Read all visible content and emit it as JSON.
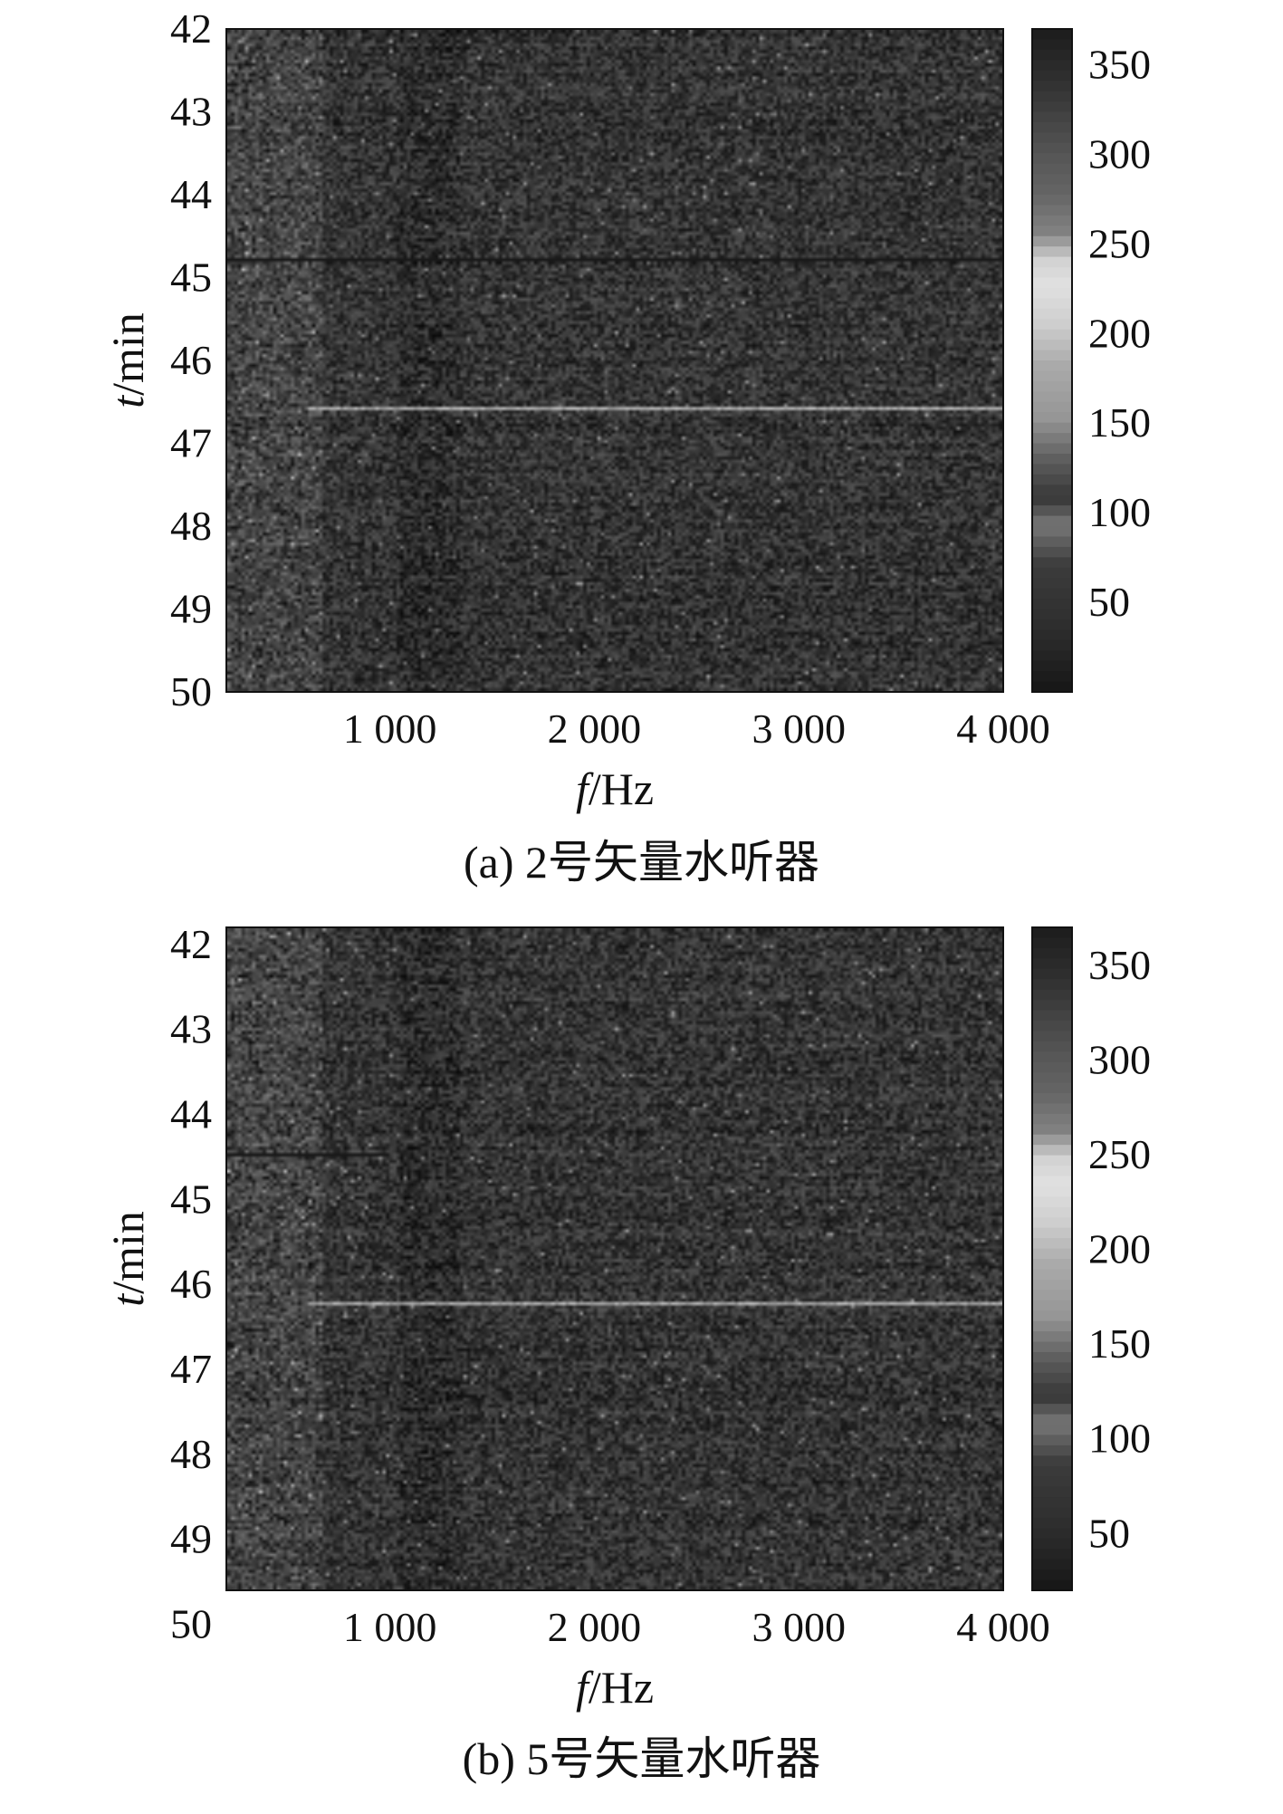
{
  "chart_data": [
    {
      "type": "heatmap",
      "caption": "(a) 2号矢量水听器",
      "xlabel": {
        "var": "f",
        "unit": "/Hz"
      },
      "ylabel": {
        "var": "t",
        "unit": "/min"
      },
      "xlim": [
        200,
        4000
      ],
      "ylim": [
        42,
        50
      ],
      "xticks": [
        1000,
        2000,
        3000,
        4000
      ],
      "xtick_labels": [
        "1 000",
        "2 000",
        "3 000",
        "4 000"
      ],
      "yticks": [
        42,
        43,
        44,
        45,
        46,
        47,
        48,
        49,
        50
      ],
      "ytick_labels": [
        "42",
        "43",
        "44",
        "45",
        "46",
        "47",
        "48",
        "49",
        "50"
      ],
      "y_direction": "down",
      "colorbar": {
        "min": 0,
        "max": 370,
        "ticks": [
          50,
          100,
          150,
          200,
          250,
          300,
          350
        ],
        "tick_labels": [
          "50",
          "100",
          "150",
          "200",
          "250",
          "300",
          "350"
        ]
      },
      "features": [
        {
          "kind": "bright-line",
          "t": 46.55,
          "f_start": 600,
          "f_end": 4000
        },
        {
          "kind": "dark-line",
          "t": 44.75,
          "f_start": 200,
          "f_end": 4000
        }
      ],
      "grid": false
    },
    {
      "type": "heatmap",
      "caption": "(b) 5号矢量水听器",
      "xlabel": {
        "var": "f",
        "unit": "/Hz"
      },
      "ylabel": {
        "var": "t",
        "unit": "/min"
      },
      "xlim": [
        200,
        4000
      ],
      "ylim": [
        41.8,
        49.6
      ],
      "xticks": [
        1000,
        2000,
        3000,
        4000
      ],
      "xtick_labels": [
        "1 000",
        "2 000",
        "3 000",
        "4 000"
      ],
      "yticks": [
        42,
        43,
        44,
        45,
        46,
        47,
        48,
        49,
        50
      ],
      "ytick_labels": [
        "42",
        "43",
        "44",
        "45",
        "46",
        "47",
        "48",
        "49",
        "50"
      ],
      "y_direction": "down",
      "colorbar": {
        "min": 20,
        "max": 370,
        "ticks": [
          50,
          100,
          150,
          200,
          250,
          300,
          350
        ],
        "tick_labels": [
          "50",
          "100",
          "150",
          "200",
          "250",
          "300",
          "350"
        ]
      },
      "features": [
        {
          "kind": "bright-line",
          "t": 46.2,
          "f_start": 600,
          "f_end": 4000
        },
        {
          "kind": "dark-line",
          "t": 44.45,
          "f_start": 200,
          "f_end": 1000
        }
      ],
      "grid": false
    }
  ]
}
